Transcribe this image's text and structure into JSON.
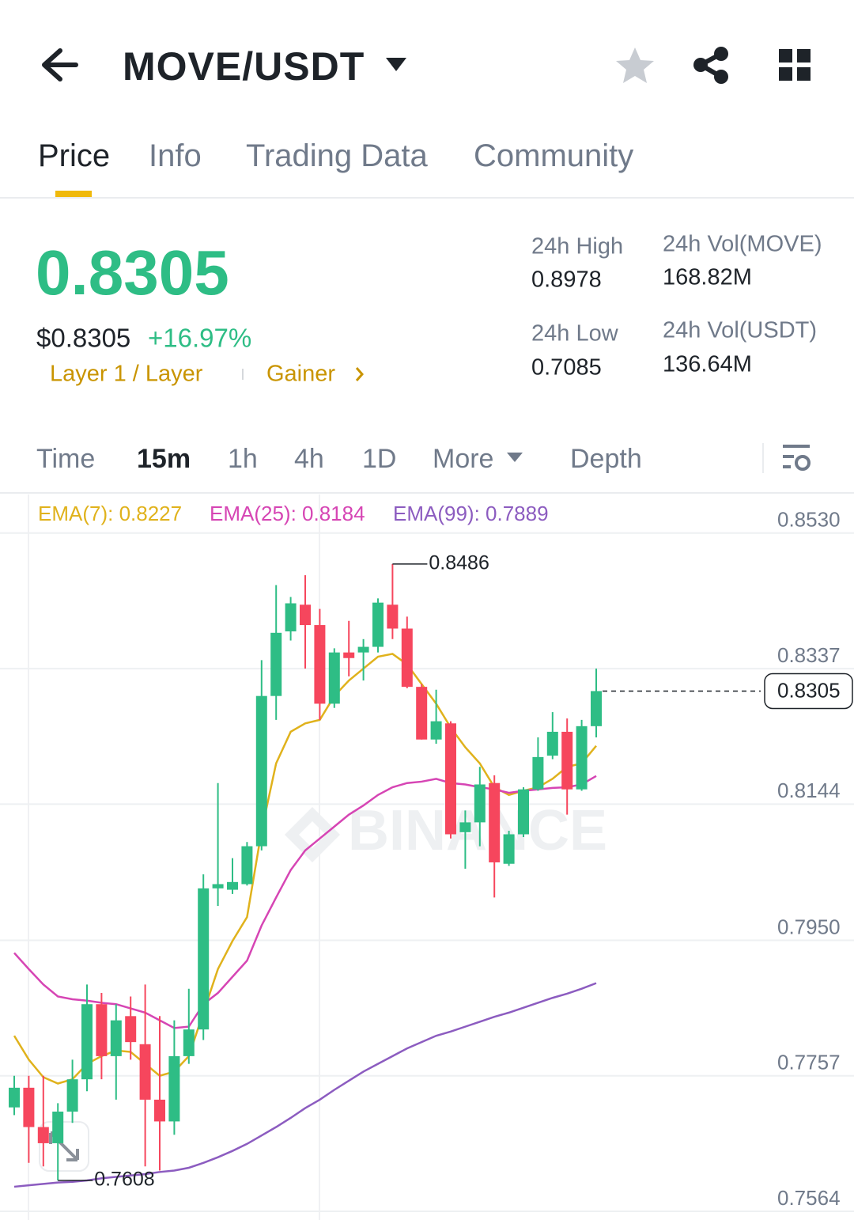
{
  "header": {
    "title": "MOVE/USDT"
  },
  "tabs": {
    "items": [
      "Price",
      "Info",
      "Trading Data",
      "Community"
    ],
    "active": 0
  },
  "ticker": {
    "price": "0.8305",
    "usd_price": "$0.8305",
    "change": "+16.97%",
    "tags": [
      "Layer 1 / Layer",
      "Gainer"
    ],
    "stats": [
      {
        "label": "24h High",
        "value": "0.8978"
      },
      {
        "label": "24h Vol(MOVE)",
        "value": "168.82M"
      },
      {
        "label": "24h Low",
        "value": "0.7085"
      },
      {
        "label": "24h Vol(USDT)",
        "value": "136.64M"
      }
    ]
  },
  "intervals": {
    "items": [
      "Time",
      "15m",
      "1h",
      "4h",
      "1D",
      "More",
      "Depth"
    ],
    "active": 1
  },
  "chart_data": {
    "type": "candlestick",
    "watermark": "BINANCE",
    "up_color": "#2ebd85",
    "down_color": "#f6465d",
    "ylim": [
      0.7564,
      0.8585
    ],
    "yticks": [
      {
        "value": 0.853,
        "label": "0.8530"
      },
      0.8337,
      0.8144,
      {
        "value": 0.795,
        "label": "0.7950"
      },
      0.7757,
      0.7564
    ],
    "grid": true,
    "high_label": "0.8486",
    "low_label": "0.7608",
    "last_label": "0.8305",
    "open": [
      0.7712,
      0.774,
      0.7684,
      0.7661,
      0.7706,
      0.7752,
      0.7859,
      0.7785,
      0.7842,
      0.7802,
      0.7723,
      0.7692,
      0.7785,
      0.7823,
      0.8024,
      0.8022,
      0.803,
      0.8084,
      0.8298,
      0.839,
      0.8428,
      0.8399,
      0.8287,
      0.836,
      0.836,
      0.8368,
      0.8428,
      0.8394,
      0.8311,
      0.8236,
      0.8259,
      0.8104,
      0.8118,
      0.8174,
      0.8059,
      0.8101,
      0.8165,
      0.8213,
      0.8247,
      0.8165,
      0.8255
    ],
    "high": [
      0.7757,
      0.7757,
      0.7757,
      0.7718,
      0.778,
      0.7887,
      0.7875,
      0.7859,
      0.787,
      0.7887,
      0.7842,
      0.7836,
      0.7881,
      0.8044,
      0.8174,
      0.8067,
      0.809,
      0.8349,
      0.8456,
      0.8439,
      0.847,
      0.8422,
      0.8366,
      0.8405,
      0.8379,
      0.8437,
      0.8486,
      0.8411,
      0.8315,
      0.8307,
      0.8262,
      0.8135,
      0.8197,
      0.8185,
      0.8106,
      0.8168,
      0.8239,
      0.8275,
      0.8266,
      0.8264,
      0.8337
    ],
    "low": [
      0.7701,
      0.7633,
      0.7628,
      0.7608,
      0.769,
      0.7735,
      0.7752,
      0.7723,
      0.778,
      0.7628,
      0.7622,
      0.7673,
      0.7774,
      0.7808,
      0.7999,
      0.8016,
      0.8028,
      0.8078,
      0.8264,
      0.8377,
      0.8337,
      0.8264,
      0.8281,
      0.8326,
      0.832,
      0.836,
      0.8379,
      0.8309,
      0.8236,
      0.823,
      0.8095,
      0.8052,
      0.8084,
      0.8011,
      0.8056,
      0.8097,
      0.8163,
      0.8208,
      0.8129,
      0.8163,
      0.8239
    ],
    "close": [
      0.774,
      0.7684,
      0.7661,
      0.7706,
      0.7752,
      0.7859,
      0.7785,
      0.7836,
      0.7805,
      0.7723,
      0.7692,
      0.7785,
      0.7823,
      0.8024,
      0.803,
      0.8033,
      0.8084,
      0.8298,
      0.8388,
      0.843,
      0.8399,
      0.8287,
      0.836,
      0.8352,
      0.8368,
      0.8431,
      0.8394,
      0.8311,
      0.8236,
      0.8262,
      0.8101,
      0.8118,
      0.8172,
      0.8061,
      0.8101,
      0.8165,
      0.8211,
      0.8247,
      0.8165,
      0.8255,
      0.8305
    ],
    "series": [
      {
        "name": "EMA(7)",
        "legend": "EMA(7): 0.8227",
        "color": "#e0b21c",
        "values": [
          0.7814,
          0.778,
          0.7755,
          0.7746,
          0.7752,
          0.7774,
          0.7785,
          0.7793,
          0.7791,
          0.7774,
          0.7757,
          0.7763,
          0.7785,
          0.7847,
          0.7909,
          0.7949,
          0.7983,
          0.8106,
          0.8202,
          0.8247,
          0.8259,
          0.8264,
          0.8298,
          0.832,
          0.8337,
          0.8354,
          0.8358,
          0.8343,
          0.8315,
          0.8287,
          0.8253,
          0.8225,
          0.8202,
          0.8168,
          0.8157,
          0.8163,
          0.8168,
          0.818,
          0.8197,
          0.8202,
          0.8227
        ]
      },
      {
        "name": "EMA(25)",
        "legend": "EMA(25): 0.8184",
        "color": "#d645b4",
        "values": [
          0.7932,
          0.7909,
          0.7887,
          0.787,
          0.7866,
          0.7864,
          0.7861,
          0.7859,
          0.7853,
          0.7847,
          0.7836,
          0.7825,
          0.7827,
          0.7859,
          0.7875,
          0.7898,
          0.7921,
          0.7971,
          0.8011,
          0.805,
          0.8078,
          0.8095,
          0.8112,
          0.8129,
          0.8142,
          0.8157,
          0.8168,
          0.8174,
          0.8176,
          0.818,
          0.8174,
          0.8172,
          0.8168,
          0.8165,
          0.816,
          0.8163,
          0.8165,
          0.8167,
          0.8168,
          0.8172,
          0.8184
        ]
      },
      {
        "name": "EMA(99)",
        "legend": "EMA(99): 0.7889",
        "color": "#8c5cc0",
        "values": [
          0.7599,
          0.7601,
          0.7603,
          0.7605,
          0.7606,
          0.7608,
          0.7611,
          0.7613,
          0.7615,
          0.7617,
          0.762,
          0.7622,
          0.7626,
          0.7633,
          0.7641,
          0.765,
          0.766,
          0.7672,
          0.7684,
          0.7697,
          0.7711,
          0.7723,
          0.7737,
          0.775,
          0.7763,
          0.7774,
          0.7785,
          0.7796,
          0.7805,
          0.7814,
          0.782,
          0.7827,
          0.7834,
          0.7841,
          0.7847,
          0.7854,
          0.7861,
          0.7868,
          0.7874,
          0.7881,
          0.7889
        ]
      }
    ]
  }
}
